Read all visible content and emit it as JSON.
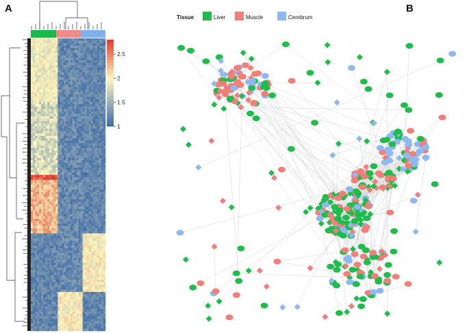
{
  "panels": {
    "a": {
      "label": "A"
    },
    "b": {
      "label": "B"
    }
  },
  "heatmap": {
    "tissue_bar_colors": [
      "#1ab84a",
      "#f08a86",
      "#7fb0ec"
    ],
    "colorbar": {
      "ticks": [
        {
          "value": 1,
          "label": "1"
        },
        {
          "value": 1.5,
          "label": "1.5"
        },
        {
          "value": 2,
          "label": "2"
        },
        {
          "value": 2.5,
          "label": "2.5"
        }
      ],
      "range": [
        1,
        2.8
      ],
      "colors": [
        "#3c6aa8",
        "#fdf7bf",
        "#de3c2c"
      ]
    }
  },
  "network": {
    "legend": {
      "title": "Tissue",
      "items": [
        {
          "label": "Liver",
          "color": "#1ebd4b"
        },
        {
          "label": "Muscle",
          "color": "#f07f7a"
        },
        {
          "label": "Cerebrum",
          "color": "#8db9f0"
        }
      ]
    }
  }
}
